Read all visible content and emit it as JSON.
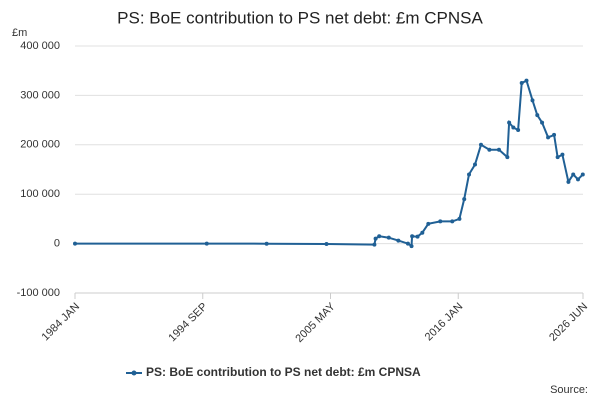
{
  "chart_data": {
    "type": "line",
    "title": "PS: BoE contribution to PS net debt: £m CPNSA",
    "y_label": "£m",
    "source": "Source:",
    "x": [
      1984.0,
      1995.0,
      2000.0,
      2005.0,
      2009.0,
      2009.1,
      2009.4,
      2010.2,
      2011.0,
      2011.8,
      2012.1,
      2012.15,
      2012.6,
      2013.0,
      2013.5,
      2014.5,
      2015.5,
      2016.1,
      2016.5,
      2016.9,
      2017.4,
      2017.9,
      2018.6,
      2019.4,
      2020.1,
      2020.25,
      2020.6,
      2021.0,
      2021.3,
      2021.7,
      2022.2,
      2022.6,
      2023.0,
      2023.5,
      2024.0,
      2024.3,
      2024.7,
      2025.2,
      2025.6,
      2026.0,
      2026.4
    ],
    "series": [
      {
        "name": "PS: BoE contribution to PS net debt: £m CPNSA",
        "color": "#206095",
        "values": [
          0,
          0,
          -300,
          -800,
          -2000,
          10000,
          15000,
          12000,
          6000,
          0,
          -5000,
          15000,
          14000,
          22000,
          40000,
          45000,
          45000,
          50000,
          90000,
          140000,
          160000,
          200000,
          190000,
          190000,
          175000,
          245000,
          235000,
          230000,
          325000,
          330000,
          290000,
          260000,
          245000,
          215000,
          220000,
          175000,
          180000,
          125000,
          140000,
          130000,
          140000
        ]
      }
    ],
    "xlim": [
      1984.0,
      2026.417
    ],
    "xticks": [
      {
        "value": 1984.0,
        "label": "1984 JAN"
      },
      {
        "value": 1994.667,
        "label": "1994 SEP"
      },
      {
        "value": 2005.333,
        "label": "2005 MAY"
      },
      {
        "value": 2016.0,
        "label": "2016 JAN"
      },
      {
        "value": 2026.417,
        "label": "2026 JUN"
      }
    ],
    "ylim": [
      -100000,
      400000
    ],
    "yticks": [
      {
        "value": -100000,
        "label": "-100 000"
      },
      {
        "value": 0,
        "label": "0"
      },
      {
        "value": 100000,
        "label": "100 000"
      },
      {
        "value": 200000,
        "label": "200 000"
      },
      {
        "value": 300000,
        "label": "300 000"
      },
      {
        "value": 400000,
        "label": "400 000"
      }
    ],
    "grid": true
  }
}
